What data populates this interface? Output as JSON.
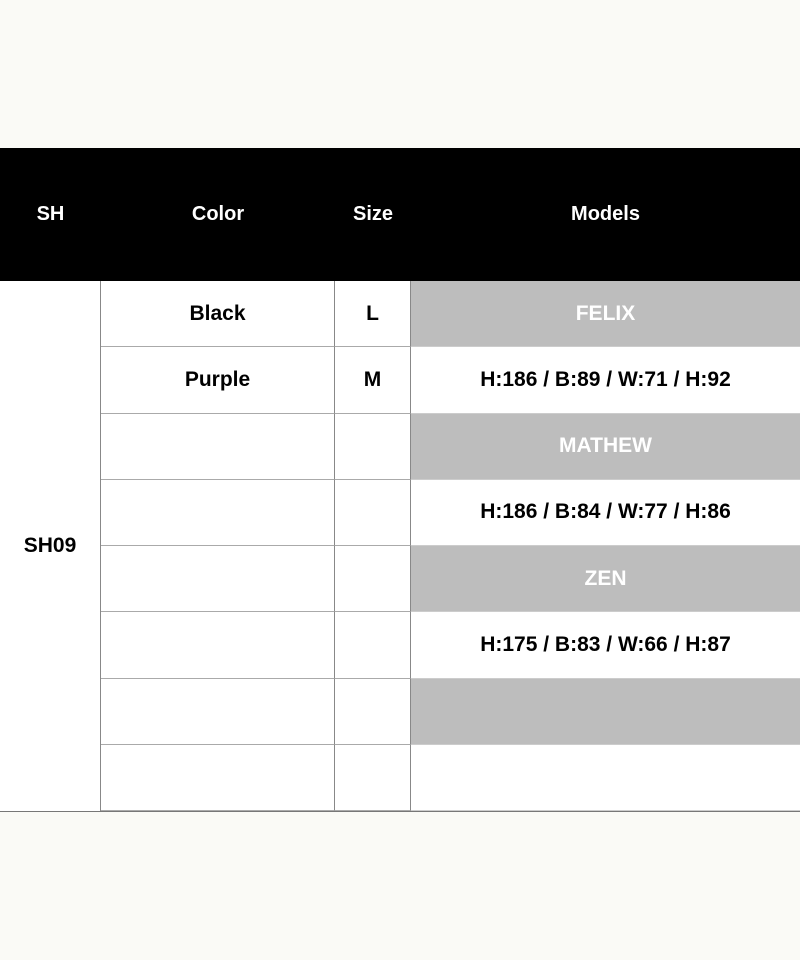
{
  "header": {
    "sh": "SH",
    "color": "Color",
    "size": "Size",
    "models": "Models"
  },
  "sh_value": "SH09",
  "rows": [
    {
      "color": "Black",
      "size": "L",
      "model": "FELIX",
      "shaded": true
    },
    {
      "color": "Purple",
      "size": "M",
      "model": "H:186 / B:89 / W:71 / H:92",
      "shaded": false
    },
    {
      "color": "",
      "size": "",
      "model": "MATHEW",
      "shaded": true
    },
    {
      "color": "",
      "size": "",
      "model": "H:186 / B:84 / W:77 / H:86",
      "shaded": false
    },
    {
      "color": "",
      "size": "",
      "model": "ZEN",
      "shaded": true
    },
    {
      "color": "",
      "size": "",
      "model": "H:175 / B:83 / W:66 / H:87",
      "shaded": false
    },
    {
      "color": "",
      "size": "",
      "model": "",
      "shaded": true
    },
    {
      "color": "",
      "size": "",
      "model": "",
      "shaded": false
    }
  ],
  "colors": {
    "header_bg": "#000000",
    "shaded_bg": "#bdbdbd"
  }
}
